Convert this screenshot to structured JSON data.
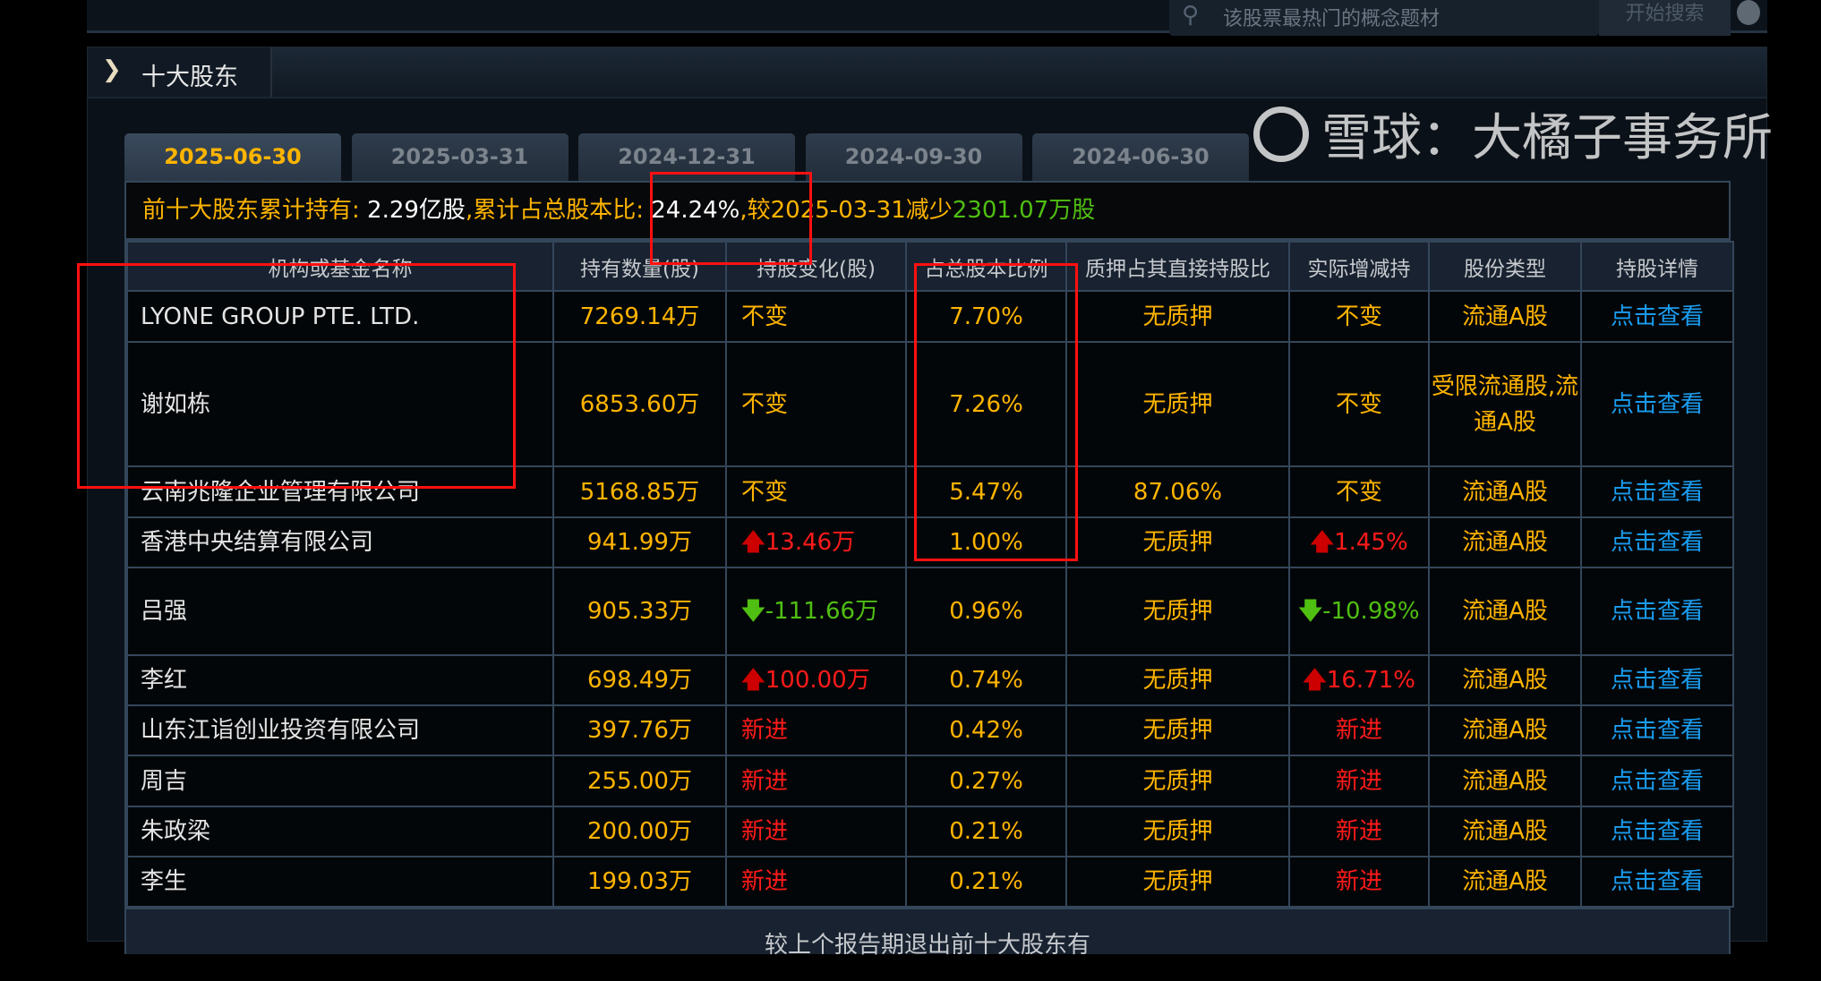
{
  "search": {
    "placeholder": "该股票最热门的概念题材",
    "button_label": "开始搜索"
  },
  "section": {
    "title": "十大股东"
  },
  "tabs": [
    {
      "label": "2025-06-30",
      "active": true
    },
    {
      "label": "2025-03-31",
      "active": false
    },
    {
      "label": "2024-12-31",
      "active": false
    },
    {
      "label": "2024-09-30",
      "active": false
    },
    {
      "label": "2024-06-30",
      "active": false
    }
  ],
  "summary": {
    "label1": "前十大股东累计持有:",
    "total_shares": "2.29亿股",
    "label2": ",累计占总股本比:",
    "total_ratio": "24.24%",
    "label3": ",较2025-03-31减少",
    "change": "2301.07万股"
  },
  "columns": [
    "机构或基金名称",
    "持有数量(股)",
    "持股变化(股)",
    "占总股本比例",
    "质押占其直接持股比",
    "实际增减持",
    "股份类型",
    "持股详情"
  ],
  "rows": [
    {
      "name": "LYONE GROUP PTE. LTD.",
      "shares": "7269.14万",
      "change": "不变",
      "change_type": "same",
      "ratio": "7.70%",
      "pledge": "无质押",
      "actual": "不变",
      "actual_type": "same",
      "type": "流通A股",
      "detail": "点击查看"
    },
    {
      "name": "谢如栋",
      "shares": "6853.60万",
      "change": "不变",
      "change_type": "same",
      "ratio": "7.26%",
      "pledge": "无质押",
      "actual": "不变",
      "actual_type": "same",
      "type": "受限流通股,流通A股",
      "detail": "点击查看"
    },
    {
      "name": "云南兆隆企业管理有限公司",
      "shares": "5168.85万",
      "change": "不变",
      "change_type": "same",
      "ratio": "5.47%",
      "pledge": "87.06%",
      "actual": "不变",
      "actual_type": "same",
      "type": "流通A股",
      "detail": "点击查看"
    },
    {
      "name": "香港中央结算有限公司",
      "shares": "941.99万",
      "change": "13.46万",
      "change_type": "up",
      "ratio": "1.00%",
      "pledge": "无质押",
      "actual": "1.45%",
      "actual_type": "up",
      "type": "流通A股",
      "detail": "点击查看"
    },
    {
      "name": "吕强",
      "shares": "905.33万",
      "change": "-111.66万",
      "change_type": "down",
      "ratio": "0.96%",
      "pledge": "无质押",
      "actual": "-10.98%",
      "actual_type": "down",
      "type": "流通A股",
      "detail": "点击查看"
    },
    {
      "name": "李红",
      "shares": "698.49万",
      "change": "100.00万",
      "change_type": "up",
      "ratio": "0.74%",
      "pledge": "无质押",
      "actual": "16.71%",
      "actual_type": "up",
      "type": "流通A股",
      "detail": "点击查看"
    },
    {
      "name": "山东江诣创业投资有限公司",
      "shares": "397.76万",
      "change": "新进",
      "change_type": "new",
      "ratio": "0.42%",
      "pledge": "无质押",
      "actual": "新进",
      "actual_type": "new",
      "type": "流通A股",
      "detail": "点击查看"
    },
    {
      "name": "周吉",
      "shares": "255.00万",
      "change": "新进",
      "change_type": "new",
      "ratio": "0.27%",
      "pledge": "无质押",
      "actual": "新进",
      "actual_type": "new",
      "type": "流通A股",
      "detail": "点击查看"
    },
    {
      "name": "朱政梁",
      "shares": "200.00万",
      "change": "新进",
      "change_type": "new",
      "ratio": "0.21%",
      "pledge": "无质押",
      "actual": "新进",
      "actual_type": "new",
      "type": "流通A股",
      "detail": "点击查看"
    },
    {
      "name": "李生",
      "shares": "199.03万",
      "change": "新进",
      "change_type": "new",
      "ratio": "0.21%",
      "pledge": "无质押",
      "actual": "新进",
      "actual_type": "new",
      "type": "流通A股",
      "detail": "点击查看"
    }
  ],
  "footer_text": "较上个报告期退出前十大股东有",
  "watermark": "雪球：大橘子事务所",
  "colors": {
    "value": "#ffb400",
    "up": "#ff1a1a",
    "down": "#4fbf12",
    "link": "#1a9cf0",
    "annotation": "#ff1010"
  }
}
